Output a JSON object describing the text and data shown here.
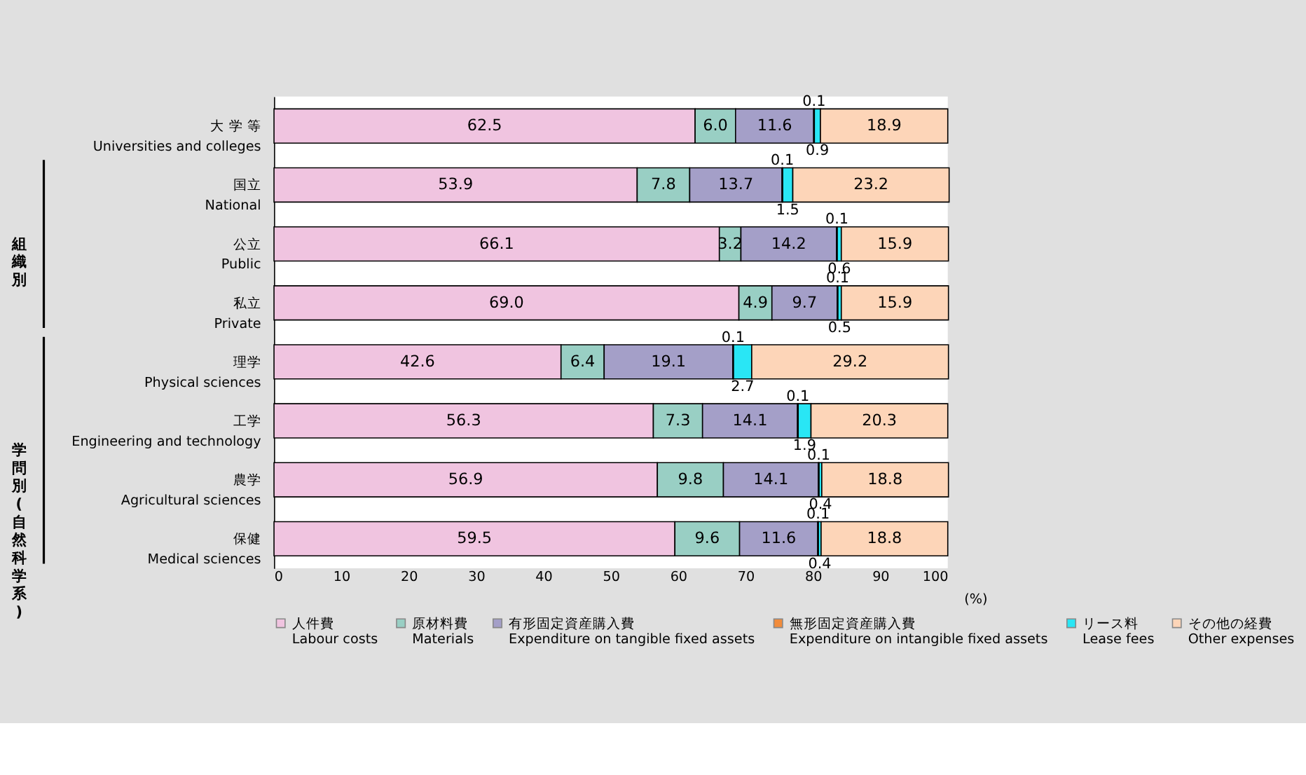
{
  "chart_data": {
    "type": "bar",
    "orientation": "horizontal",
    "stacked": true,
    "grid": false,
    "legend": "bottom",
    "categories": [
      "大 学 等\nUniversities and colleges",
      "国立\nNational",
      "公立\nPublic",
      "私立\nPrivate",
      "理学\nPhysical sciences",
      "工学\nEngineering and technology",
      "農学\nAgricultural sciences",
      "保健\nMedical sciences"
    ],
    "series": [
      {
        "name": "人件費\nLabour costs",
        "color": "#f0c4e0",
        "values": [
          62.5,
          53.9,
          66.1,
          69.0,
          42.6,
          56.3,
          56.9,
          59.5
        ],
        "value_labels": [
          "62.5",
          "53.9",
          "66.1",
          "69.0",
          "42.6",
          "56.3",
          "56.9",
          "59.5"
        ]
      },
      {
        "name": "原材料費\nMaterials",
        "color": "#99cfc4",
        "values": [
          6.0,
          7.8,
          3.2,
          4.9,
          6.4,
          7.3,
          9.8,
          9.6
        ],
        "value_labels": [
          "6.0",
          "7.8",
          "3.2",
          "4.9",
          "6.4",
          "7.3",
          "9.8",
          "9.6"
        ]
      },
      {
        "name": "有形固定資産購入費\nExpenditure on tangible fixed assets",
        "color": "#a49fc8",
        "values": [
          11.6,
          13.7,
          14.2,
          9.7,
          19.1,
          14.1,
          14.1,
          11.6
        ],
        "value_labels": [
          "11.6",
          "13.7",
          "14.2",
          "9.7",
          "19.1",
          "14.1",
          "14.1",
          "11.6"
        ]
      },
      {
        "name": "無形固定資産購入費\nExpenditure on intangible fixed assets",
        "color": "#f28c3c",
        "values": [
          0.1,
          0.1,
          0.1,
          0.1,
          0.1,
          0.1,
          0.1,
          0.1
        ],
        "value_labels": [
          "0.1",
          "0.1",
          "0.1",
          "0.1",
          "0.1",
          "0.1",
          "0.1",
          "0.1"
        ]
      },
      {
        "name": "リース料\nLease fees",
        "color": "#29e6f5",
        "values": [
          0.9,
          1.5,
          0.6,
          0.5,
          2.7,
          1.9,
          0.4,
          0.4
        ],
        "value_labels": [
          "0.9",
          "1.5",
          "0.6",
          "0.5",
          "2.7",
          "1.9",
          "0.4",
          "0.4"
        ]
      },
      {
        "name": "その他の経費\nOther expenses",
        "color": "#fdd5b8",
        "values": [
          18.9,
          23.2,
          15.9,
          15.9,
          29.2,
          20.3,
          18.8,
          18.8
        ],
        "value_labels": [
          "18.9",
          "23.2",
          "15.9",
          "15.9",
          "29.2",
          "20.3",
          "18.8",
          "18.8"
        ]
      }
    ],
    "xlim": [
      0,
      100
    ],
    "xticks": [
      0,
      10,
      20,
      30,
      40,
      50,
      60,
      70,
      80,
      90,
      100
    ],
    "xlabel": "(%)",
    "annotations": [
      "組織別",
      "学問別(自然科学系)"
    ]
  }
}
